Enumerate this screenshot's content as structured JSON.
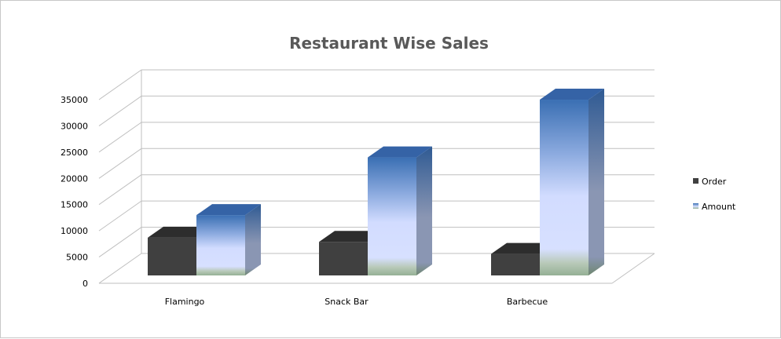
{
  "chart_data": {
    "type": "bar",
    "title": "Restaurant Wise Sales",
    "xlabel": "",
    "ylabel": "",
    "categories": [
      "Flamingo",
      "Snack Bar",
      "Barbecue"
    ],
    "series": [
      {
        "name": "Order",
        "values": [
          7200,
          6400,
          4100
        ]
      },
      {
        "name": "Amount",
        "values": [
          11500,
          22500,
          33500
        ]
      }
    ],
    "ylim": [
      0,
      35000
    ],
    "yticks": [
      "0",
      "5000",
      "10000",
      "15000",
      "20000",
      "25000",
      "30000",
      "35000"
    ],
    "grid": true,
    "legend_position": "right",
    "colors": {
      "order": "#404040",
      "amount_top": "#3a6fb3",
      "amount_mid": "#d7e0ff",
      "amount_bottom": "#95b095"
    }
  }
}
